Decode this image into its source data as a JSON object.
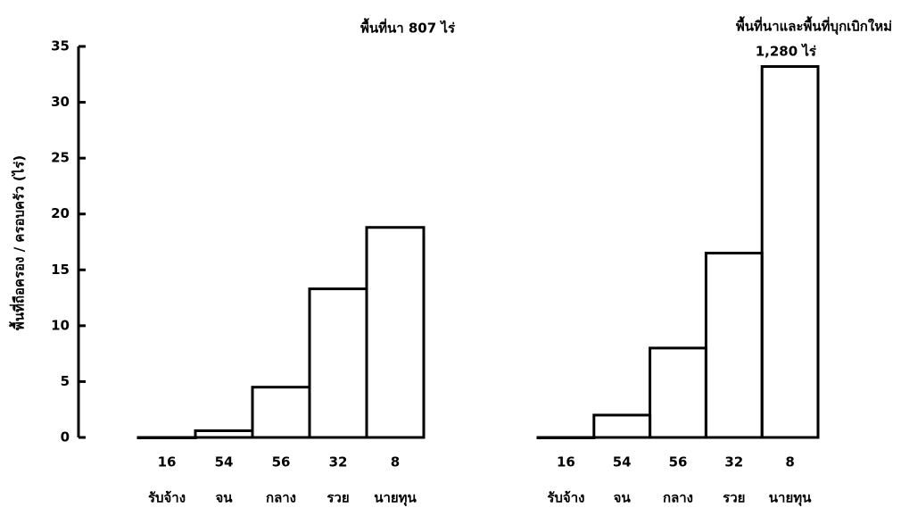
{
  "chart_data": [
    {
      "type": "bar",
      "title": "พื้นที่นา 807 ไร่",
      "ylabel": "พื้นที่ถือครอง / ครอบครัว (ไร่)",
      "categories": [
        "รับจ้าง",
        "จน",
        "กลาง",
        "รวย",
        "นายทุน"
      ],
      "group_sizes": [
        16,
        54,
        56,
        32,
        8
      ],
      "values": [
        0,
        0.6,
        4.5,
        13.3,
        18.8
      ],
      "color": "#000000",
      "ylim": [
        0,
        35
      ],
      "yticks": [
        0,
        5,
        10,
        15,
        20,
        25,
        30,
        35
      ]
    },
    {
      "type": "bar",
      "title": "พื้นที่นาและพื้นที่บุกเบิกใหม่",
      "subtitle": "1,280 ไร่",
      "categories": [
        "รับจ้าง",
        "จน",
        "กลาง",
        "รวย",
        "นายทุน"
      ],
      "group_sizes": [
        16,
        54,
        56,
        32,
        8
      ],
      "values": [
        0,
        2.0,
        8.0,
        16.5,
        33.2
      ],
      "color": "#000000",
      "ylim": [
        0,
        35
      ]
    }
  ]
}
